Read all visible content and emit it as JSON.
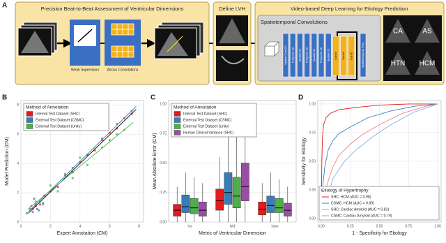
{
  "diagram": {
    "panel": "A",
    "box1": {
      "title": "Precision Beat-to-Beat Assessment of Ventricular Dimensions",
      "labels": [
        "Weak Supervision",
        "Atrous Convolutions"
      ]
    },
    "box2": {
      "title": "Define LVH"
    },
    "box3": {
      "title": "Video-based Deep Learning for Etiology Prediction",
      "subtitle": "Spatiotemporal Convolutions",
      "layers": [
        "Spatial Conv2D",
        "Temporal 1D",
        "Spatial 2D",
        "Temporal 1D",
        "Spatial 2D",
        "Temporal 1D",
        "Spatial 2D",
        "Conv3",
        "Conv4",
        "Conv5",
        "Spatiotemporal Pool"
      ],
      "classes": [
        "CA",
        "AS",
        "HTN",
        "HCM"
      ]
    }
  },
  "chart_data": [
    {
      "panel": "B",
      "type": "scatter",
      "x_label": "Expert Annotation (CM)",
      "y_label": "Model Prediction (CM)",
      "legend_title": "Method of Annotation",
      "legend": "top-left",
      "grid": true,
      "xlim": [
        0,
        8.3
      ],
      "ylim": [
        0,
        8.3
      ],
      "xticks": [
        0,
        2,
        4,
        6,
        8
      ],
      "yticks": [
        0,
        2,
        4,
        6,
        8
      ],
      "series": [
        {
          "name": "Internal Test Dataset (SHC)",
          "color": "#e41a1c",
          "x": [
            0.8,
            1.0,
            1.3,
            1.6,
            2.0,
            2.5,
            3.0,
            3.5,
            4.0,
            4.5,
            5.0,
            5.5,
            6.0,
            6.5,
            7.0,
            7.5
          ],
          "y": [
            0.9,
            1.1,
            1.2,
            1.8,
            2.1,
            2.4,
            3.2,
            3.4,
            4.1,
            4.6,
            4.9,
            5.6,
            6.1,
            6.4,
            7.1,
            7.4
          ],
          "fit_x": [
            0.5,
            7.8
          ],
          "fit_y": [
            0.6,
            7.7
          ]
        },
        {
          "name": "External Test Dataset (CSMC)",
          "color": "#377eb8",
          "x": [
            0.4,
            0.6,
            0.8,
            1.0,
            1.1,
            1.3,
            1.5,
            0.9,
            0.7,
            1.2,
            3.5,
            4.5,
            5.5,
            6.5,
            7.5
          ],
          "y": [
            0.6,
            0.9,
            0.7,
            1.2,
            0.9,
            1.4,
            1.3,
            1.6,
            1.1,
            0.8,
            3.7,
            4.6,
            5.7,
            6.7,
            7.6
          ],
          "fit_x": [
            0.5,
            7.8
          ],
          "fit_y": [
            0.7,
            7.9
          ]
        },
        {
          "name": "External Test Dataset (Unity)",
          "color": "#4daf4a",
          "x": [
            1.0,
            1.5,
            2.0,
            2.5,
            3.0,
            3.5,
            4.0,
            4.5,
            5.0,
            5.5,
            6.0,
            6.5,
            7.0
          ],
          "y": [
            1.4,
            1.2,
            2.5,
            2.1,
            3.3,
            3.0,
            4.4,
            3.9,
            5.0,
            5.1,
            5.6,
            6.0,
            6.3
          ],
          "fit_x": [
            0.5,
            7.6
          ],
          "fit_y": [
            0.9,
            6.8
          ]
        }
      ]
    },
    {
      "panel": "C",
      "type": "box",
      "x_label": "Metric of Ventricular Dimension",
      "y_label": "Mean Absolute Error (CM)",
      "legend_title": "Method of Annotation",
      "legend": "top-left",
      "grid": true,
      "categories": [
        "ivs",
        "lvid",
        "lvpw"
      ],
      "ylim": [
        0,
        1.03
      ],
      "yticks": [
        {
          "value": 0,
          "label": "0.00"
        },
        {
          "value": 0.25,
          "label": "0.25"
        },
        {
          "value": 0.5,
          "label": "0.50"
        },
        {
          "value": 0.75,
          "label": "0.75"
        },
        {
          "value": 1,
          "label": "1.00"
        }
      ],
      "series": [
        {
          "name": "Internal Test Dataset (SHC)",
          "color": "#e41a1c",
          "whisker_low": [
            0,
            0,
            0
          ],
          "q1": [
            0.05,
            0.1,
            0.06
          ],
          "median": [
            0.1,
            0.18,
            0.11
          ],
          "q3": [
            0.15,
            0.28,
            0.17
          ],
          "whisker_high": [
            0.3,
            0.55,
            0.33
          ]
        },
        {
          "name": "External Test Dataset (CSMC)",
          "color": "#377eb8",
          "whisker_low": [
            0,
            0,
            0
          ],
          "q1": [
            0.08,
            0.15,
            0.08
          ],
          "median": [
            0.13,
            0.25,
            0.14
          ],
          "q3": [
            0.23,
            0.42,
            0.22
          ],
          "whisker_high": [
            0.42,
            0.82,
            0.42
          ]
        },
        {
          "name": "External Test Dataset (Unity)",
          "color": "#4daf4a",
          "whisker_low": [
            0,
            0,
            0
          ],
          "q1": [
            0.07,
            0.12,
            0.08
          ],
          "median": [
            0.12,
            0.22,
            0.12
          ],
          "q3": [
            0.2,
            0.38,
            0.2
          ],
          "whisker_high": [
            0.38,
            0.75,
            0.36
          ]
        },
        {
          "name": "Human Clinical Variance (SHC)",
          "color": "#984ea3",
          "whisker_low": [
            0,
            0,
            0
          ],
          "q1": [
            0.05,
            0.18,
            0.05
          ],
          "median": [
            0.1,
            0.3,
            0.1
          ],
          "q3": [
            0.17,
            0.5,
            0.16
          ],
          "whisker_high": [
            0.33,
            0.95,
            0.3
          ]
        }
      ]
    },
    {
      "panel": "D",
      "type": "line",
      "x_label": "1 - Specificity for Etiology",
      "y_label": "Sensitivity for Etiology",
      "legend_title": "Etiology of Hypertrophy",
      "legend": "bottom-right",
      "grid": true,
      "xlim": [
        -0.03,
        1.03
      ],
      "ylim": [
        -0.03,
        1.03
      ],
      "xticks": [
        {
          "value": 0,
          "label": "0.00"
        },
        {
          "value": 0.25,
          "label": "0.25"
        },
        {
          "value": 0.5,
          "label": "0.50"
        },
        {
          "value": 0.75,
          "label": "0.75"
        },
        {
          "value": 1,
          "label": "1.00"
        }
      ],
      "yticks": [
        {
          "value": 0,
          "label": "0.00"
        },
        {
          "value": 0.25,
          "label": "0.25"
        },
        {
          "value": 0.5,
          "label": "0.50"
        },
        {
          "value": 0.75,
          "label": "0.75"
        },
        {
          "value": 1,
          "label": "1.00"
        }
      ],
      "series": [
        {
          "name": "SHC: HCM (AUC = 0.98)",
          "color": "#e41a1c",
          "x": [
            0,
            0.005,
            0.01,
            0.02,
            0.04,
            0.08,
            0.15,
            0.3,
            0.5,
            0.75,
            1
          ],
          "y": [
            0,
            0.5,
            0.7,
            0.82,
            0.88,
            0.92,
            0.95,
            0.97,
            0.99,
            1,
            1
          ]
        },
        {
          "name": "CSMC: HCM (AUC = 0.89)",
          "color": "#377eb8",
          "x": [
            0,
            0.01,
            0.03,
            0.06,
            0.1,
            0.15,
            0.25,
            0.4,
            0.6,
            0.8,
            1
          ],
          "y": [
            0,
            0.25,
            0.45,
            0.6,
            0.68,
            0.74,
            0.8,
            0.88,
            0.94,
            0.98,
            1
          ]
        },
        {
          "name": "SHC: Cardiac Amyloid (AUC = 0.83)",
          "color": "#f08080",
          "x": [
            0,
            0.02,
            0.05,
            0.1,
            0.15,
            0.25,
            0.35,
            0.5,
            0.7,
            0.9,
            1
          ],
          "y": [
            0,
            0.1,
            0.3,
            0.45,
            0.55,
            0.65,
            0.73,
            0.82,
            0.92,
            0.98,
            1
          ]
        },
        {
          "name": "CSMC: Cardiac Amyloid (AUC = 0.79)",
          "color": "#7fb3e0",
          "x": [
            0,
            0.03,
            0.06,
            0.1,
            0.2,
            0.3,
            0.45,
            0.6,
            0.8,
            1
          ],
          "y": [
            0,
            0.1,
            0.2,
            0.35,
            0.5,
            0.6,
            0.72,
            0.82,
            0.93,
            1
          ]
        }
      ]
    }
  ]
}
